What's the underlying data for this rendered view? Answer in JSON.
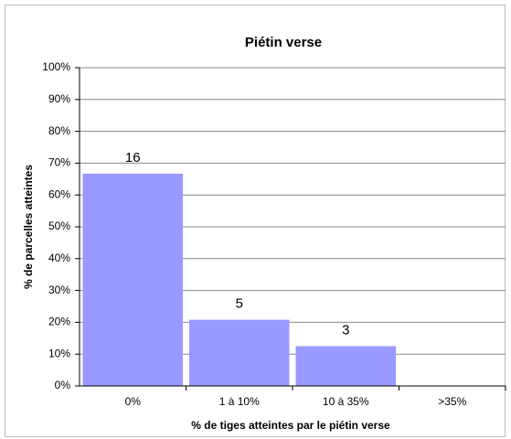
{
  "chart_data": {
    "type": "bar",
    "title": "Piétin verse",
    "xlabel": "% de tiges atteintes par le piétin verse",
    "ylabel": "% de parcelles atteintes",
    "categories": [
      "0%",
      "1 à 10%",
      "10 à 35%",
      ">35%"
    ],
    "values": [
      66.7,
      20.8,
      12.5,
      0
    ],
    "value_labels": [
      "16",
      "5",
      "3",
      null
    ],
    "color": "#9999ff",
    "ylim": [
      0,
      100
    ],
    "yticks": [
      {
        "value": 0,
        "label": "0%"
      },
      {
        "value": 10,
        "label": "10%"
      },
      {
        "value": 20,
        "label": "20%"
      },
      {
        "value": 30,
        "label": "30%"
      },
      {
        "value": 40,
        "label": "40%"
      },
      {
        "value": 50,
        "label": "50%"
      },
      {
        "value": 60,
        "label": "60%"
      },
      {
        "value": 70,
        "label": "70%"
      },
      {
        "value": 80,
        "label": "80%"
      },
      {
        "value": 90,
        "label": "90%"
      },
      {
        "value": 100,
        "label": "100%"
      }
    ],
    "grid": true
  }
}
